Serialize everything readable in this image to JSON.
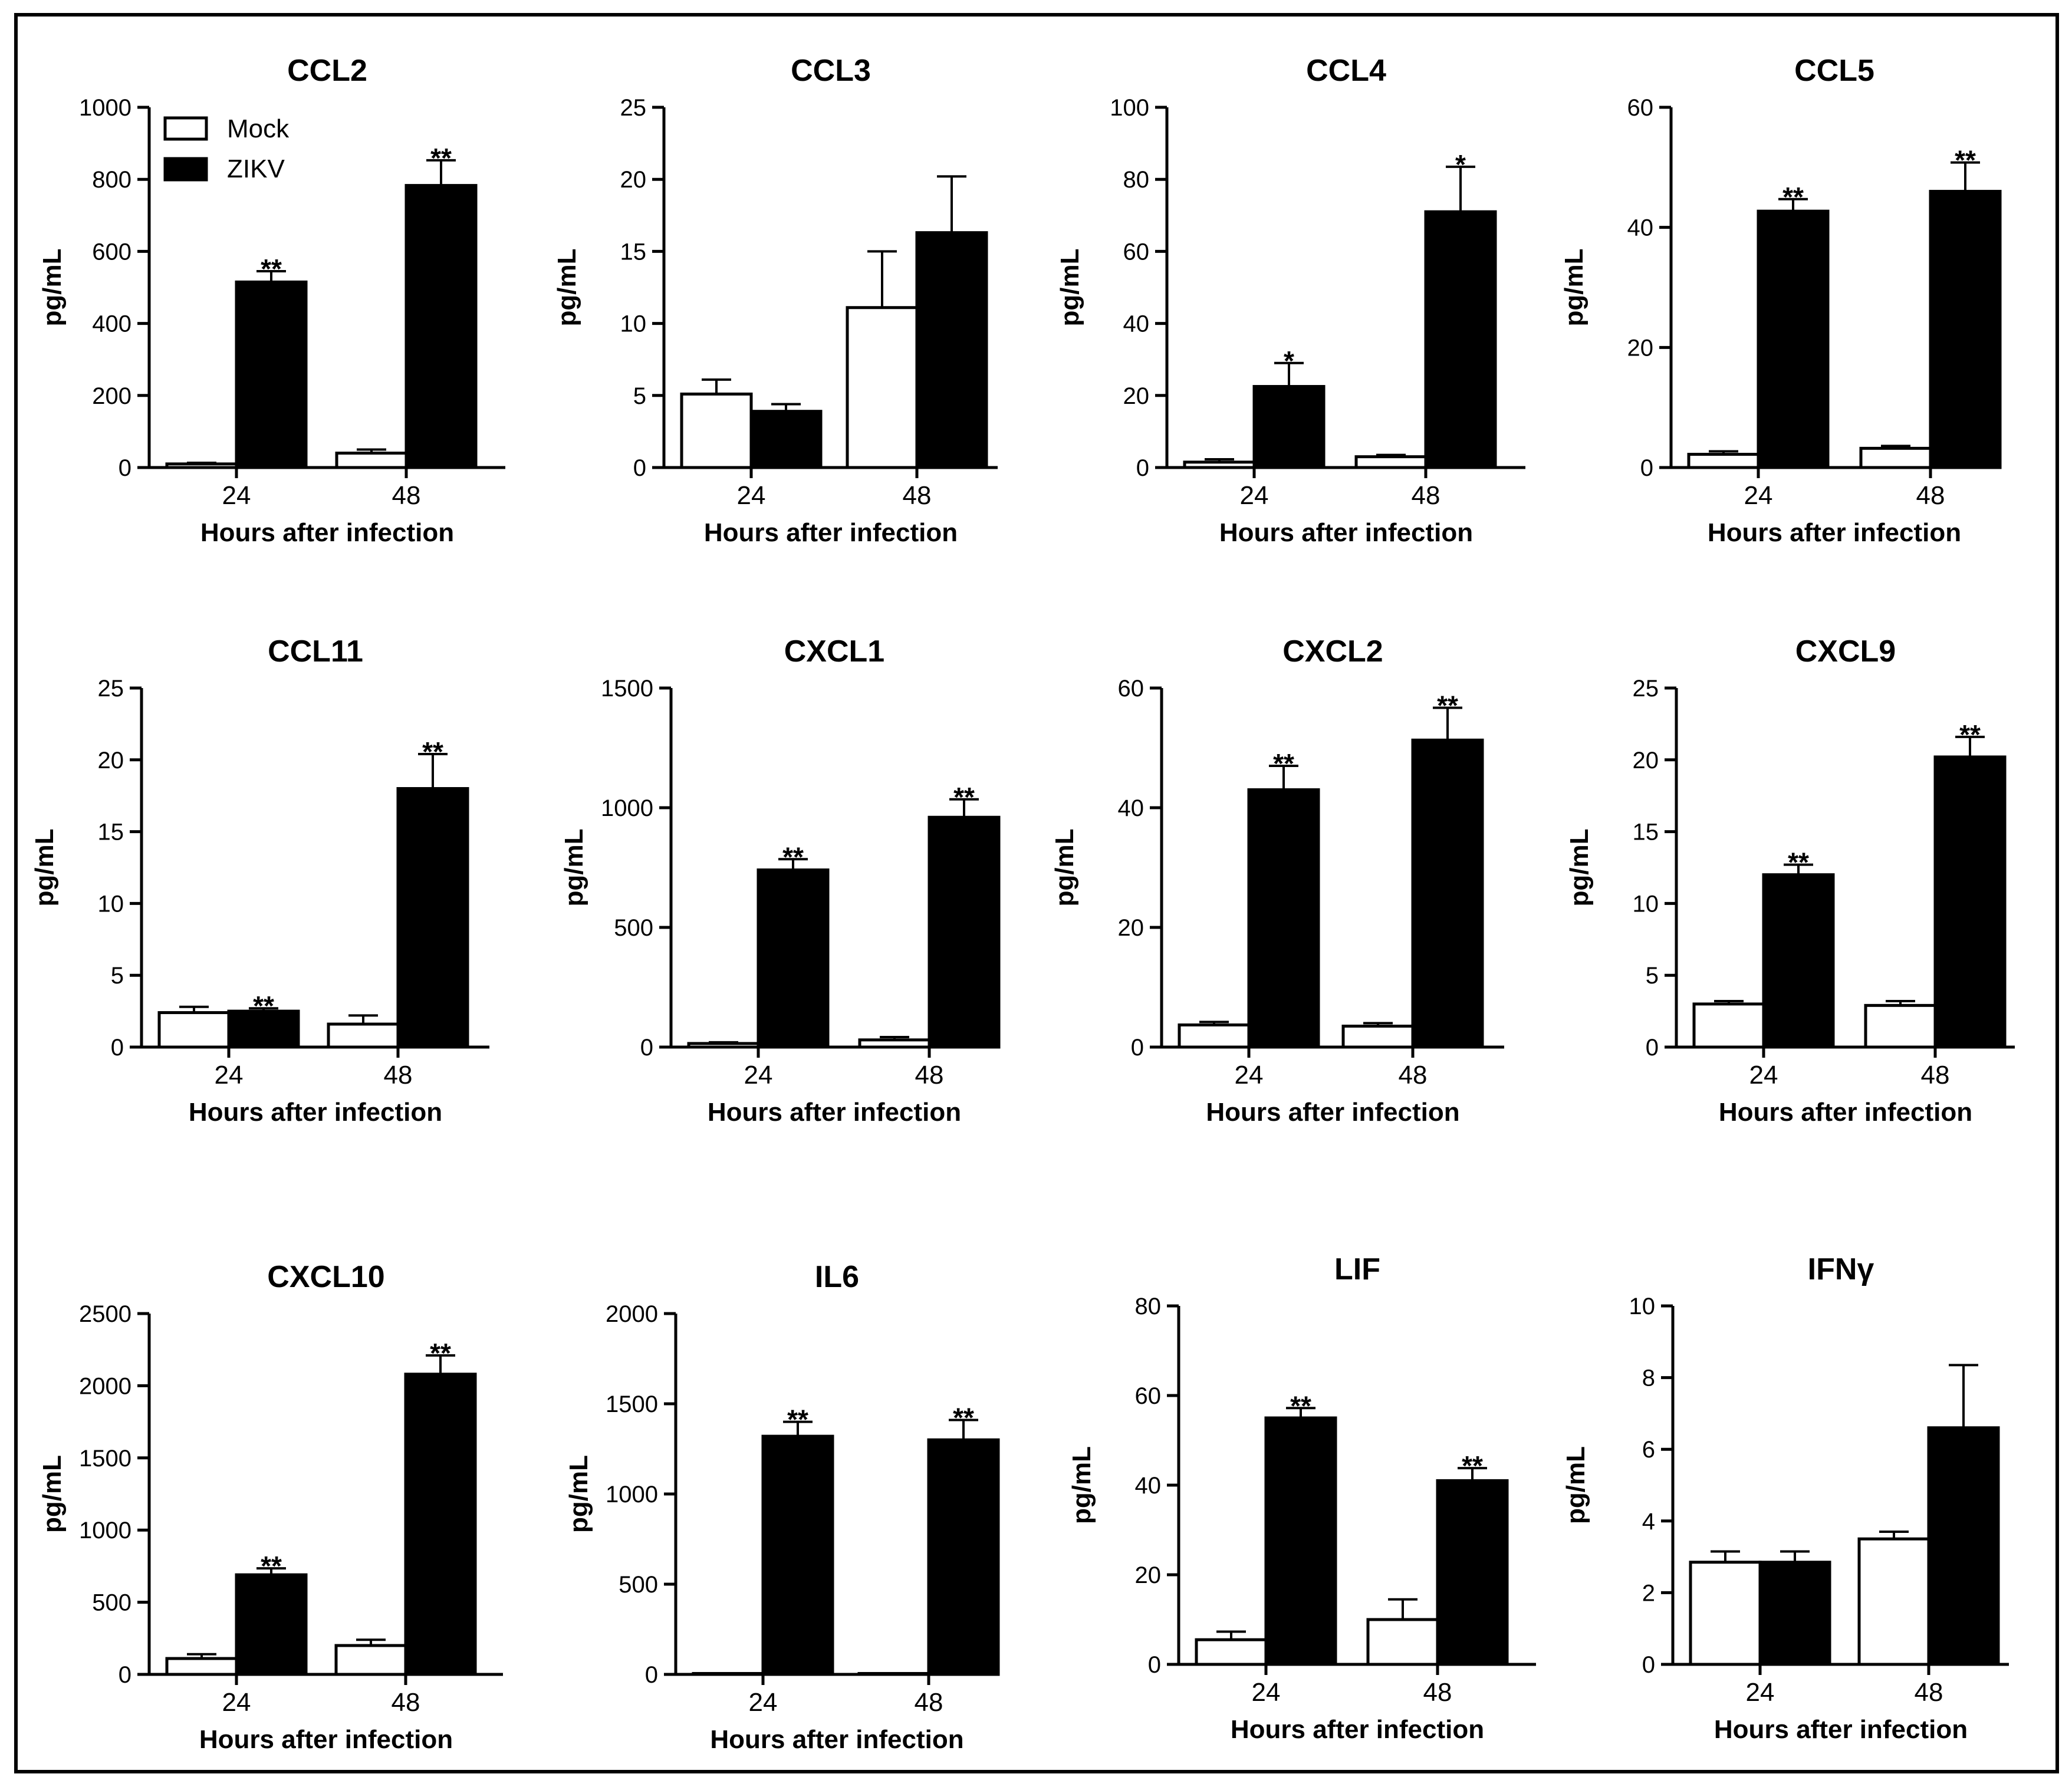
{
  "colors": {
    "mock": "#ffffff",
    "zikv": "#000000",
    "stroke": "#000000"
  },
  "legend": [
    {
      "name": "Mock",
      "fill": "#ffffff"
    },
    {
      "name": "ZIKV",
      "fill": "#000000"
    }
  ],
  "chart_data": [
    {
      "type": "bar",
      "title": "CCL2",
      "ylabel": "pg/mL",
      "xlabel": "Hours after infection",
      "ylim": [
        0,
        1000
      ],
      "yticks": [
        "0",
        "200",
        "400",
        "600",
        "800",
        "1000"
      ],
      "categories": [
        "24",
        "48"
      ],
      "series": [
        {
          "name": "Mock",
          "values": [
            10,
            40
          ],
          "errors": [
            3,
            10
          ]
        },
        {
          "name": "ZIKV",
          "values": [
            515,
            783
          ],
          "errors": [
            30,
            70
          ]
        }
      ],
      "significance": [
        [
          "",
          "**"
        ],
        [
          "",
          "**"
        ]
      ]
    },
    {
      "type": "bar",
      "title": "CCL3",
      "ylabel": "pg/mL",
      "xlabel": "Hours after infection",
      "ylim": [
        0,
        25
      ],
      "yticks": [
        "0",
        "5",
        "10",
        "15",
        "20",
        "25"
      ],
      "categories": [
        "24",
        "48"
      ],
      "series": [
        {
          "name": "Mock",
          "values": [
            5.1,
            11.1
          ],
          "errors": [
            1.0,
            3.9
          ]
        },
        {
          "name": "ZIKV",
          "values": [
            3.9,
            16.3
          ],
          "errors": [
            0.5,
            3.9
          ]
        }
      ],
      "significance": [
        [
          "",
          ""
        ],
        [
          "",
          ""
        ]
      ]
    },
    {
      "type": "bar",
      "title": "CCL4",
      "ylabel": "pg/mL",
      "xlabel": "Hours after infection",
      "ylim": [
        0,
        100
      ],
      "yticks": [
        "0",
        "20",
        "40",
        "60",
        "80",
        "100"
      ],
      "categories": [
        "24",
        "48"
      ],
      "series": [
        {
          "name": "Mock",
          "values": [
            1.5,
            3
          ],
          "errors": [
            0.8,
            0.5
          ]
        },
        {
          "name": "ZIKV",
          "values": [
            22.5,
            71
          ],
          "errors": [
            6.5,
            12.5
          ]
        }
      ],
      "significance": [
        [
          "",
          "*"
        ],
        [
          "",
          "*"
        ]
      ]
    },
    {
      "type": "bar",
      "title": "CCL5",
      "ylabel": "pg/mL",
      "xlabel": "Hours after infection",
      "ylim": [
        0,
        60
      ],
      "yticks": [
        "0",
        "20",
        "40",
        "60"
      ],
      "categories": [
        "24",
        "48"
      ],
      "series": [
        {
          "name": "Mock",
          "values": [
            2.2,
            3.2
          ],
          "errors": [
            0.5,
            0.4
          ]
        },
        {
          "name": "ZIKV",
          "values": [
            42.7,
            46
          ],
          "errors": [
            2.0,
            4.8
          ]
        }
      ],
      "significance": [
        [
          "",
          "**"
        ],
        [
          "",
          "**"
        ]
      ]
    },
    {
      "type": "bar",
      "title": "CCL11",
      "ylabel": "pg/mL",
      "xlabel": "Hours after infection",
      "ylim": [
        0,
        25
      ],
      "yticks": [
        "0",
        "5",
        "10",
        "15",
        "20",
        "25"
      ],
      "categories": [
        "24",
        "48"
      ],
      "series": [
        {
          "name": "Mock",
          "values": [
            2.4,
            1.6
          ],
          "errors": [
            0.4,
            0.6
          ]
        },
        {
          "name": "ZIKV",
          "values": [
            2.5,
            18
          ],
          "errors": [
            0.2,
            2.4
          ]
        }
      ],
      "significance": [
        [
          "",
          ""
        ],
        [
          "",
          "**"
        ]
      ]
    },
    {
      "type": "bar",
      "title": "CXCL1",
      "ylabel": "pg/mL",
      "xlabel": "Hours after infection",
      "ylim": [
        0,
        1500
      ],
      "yticks": [
        "0",
        "500",
        "1000",
        "1500"
      ],
      "categories": [
        "24",
        "48"
      ],
      "series": [
        {
          "name": "Mock",
          "values": [
            15,
            30
          ],
          "errors": [
            5,
            12
          ]
        },
        {
          "name": "ZIKV",
          "values": [
            740,
            960
          ],
          "errors": [
            45,
            75
          ]
        }
      ],
      "significance": [
        [
          "",
          "**"
        ],
        [
          "",
          "**"
        ]
      ]
    },
    {
      "type": "bar",
      "title": "CXCL2",
      "ylabel": "pg/mL",
      "xlabel": "Hours after infection",
      "ylim": [
        0,
        60
      ],
      "yticks": [
        "0",
        "20",
        "40",
        "60"
      ],
      "categories": [
        "24",
        "48"
      ],
      "series": [
        {
          "name": "Mock",
          "values": [
            3.7,
            3.5
          ],
          "errors": [
            0.5,
            0.5
          ]
        },
        {
          "name": "ZIKV",
          "values": [
            43,
            51.3
          ],
          "errors": [
            4.0,
            5.4
          ]
        }
      ],
      "significance": [
        [
          "",
          "**"
        ],
        [
          "",
          "**"
        ]
      ]
    },
    {
      "type": "bar",
      "title": "CXCL9",
      "ylabel": "pg/mL",
      "xlabel": "Hours after infection",
      "ylim": [
        0,
        25
      ],
      "yticks": [
        "0",
        "5",
        "10",
        "15",
        "20",
        "25"
      ],
      "categories": [
        "24",
        "48"
      ],
      "series": [
        {
          "name": "Mock",
          "values": [
            3,
            2.9
          ],
          "errors": [
            0.2,
            0.3
          ]
        },
        {
          "name": "ZIKV",
          "values": [
            12,
            20.2
          ],
          "errors": [
            0.7,
            1.4
          ]
        }
      ],
      "significance": [
        [
          "",
          "**"
        ],
        [
          "",
          "**"
        ]
      ]
    },
    {
      "type": "bar",
      "title": "CXCL10",
      "ylabel": "pg/mL",
      "xlabel": "Hours after infection",
      "ylim": [
        0,
        2500
      ],
      "yticks": [
        "0",
        "500",
        "1000",
        "1500",
        "2000",
        "2500"
      ],
      "categories": [
        "24",
        "48"
      ],
      "series": [
        {
          "name": "Mock",
          "values": [
            110,
            200
          ],
          "errors": [
            30,
            40
          ]
        },
        {
          "name": "ZIKV",
          "values": [
            690,
            2080
          ],
          "errors": [
            45,
            130
          ]
        }
      ],
      "significance": [
        [
          "",
          "**"
        ],
        [
          "",
          "**"
        ]
      ]
    },
    {
      "type": "bar",
      "title": "IL6",
      "ylabel": "pg/mL",
      "xlabel": "Hours after infection",
      "ylim": [
        0,
        2000
      ],
      "yticks": [
        "0",
        "500",
        "1000",
        "1500",
        "2000"
      ],
      "categories": [
        "24",
        "48"
      ],
      "series": [
        {
          "name": "Mock",
          "values": [
            5,
            5
          ],
          "errors": [
            0,
            0
          ]
        },
        {
          "name": "ZIKV",
          "values": [
            1320,
            1300
          ],
          "errors": [
            80,
            110
          ]
        }
      ],
      "significance": [
        [
          "",
          "**"
        ],
        [
          "",
          "**"
        ]
      ]
    },
    {
      "type": "bar",
      "title": "LIF",
      "ylabel": "pg/mL",
      "xlabel": "Hours after infection",
      "ylim": [
        0,
        80
      ],
      "yticks": [
        "0",
        "20",
        "40",
        "60",
        "80"
      ],
      "categories": [
        "24",
        "48"
      ],
      "series": [
        {
          "name": "Mock",
          "values": [
            5.5,
            10
          ],
          "errors": [
            1.8,
            4.5
          ]
        },
        {
          "name": "ZIKV",
          "values": [
            55,
            41
          ],
          "errors": [
            2.2,
            2.8
          ]
        }
      ],
      "significance": [
        [
          "",
          "**"
        ],
        [
          "",
          "**"
        ]
      ]
    },
    {
      "type": "bar",
      "title": "IFNγ",
      "ylabel": "pg/mL",
      "xlabel": "Hours after infection",
      "ylim": [
        0,
        10
      ],
      "yticks": [
        "0",
        "2",
        "4",
        "6",
        "8",
        "10"
      ],
      "categories": [
        "24",
        "48"
      ],
      "series": [
        {
          "name": "Mock",
          "values": [
            2.85,
            3.5
          ],
          "errors": [
            0.3,
            0.2
          ]
        },
        {
          "name": "ZIKV",
          "values": [
            2.85,
            6.6
          ],
          "errors": [
            0.3,
            1.75
          ]
        }
      ],
      "significance": [
        [
          "",
          ""
        ],
        [
          "",
          ""
        ]
      ]
    }
  ]
}
